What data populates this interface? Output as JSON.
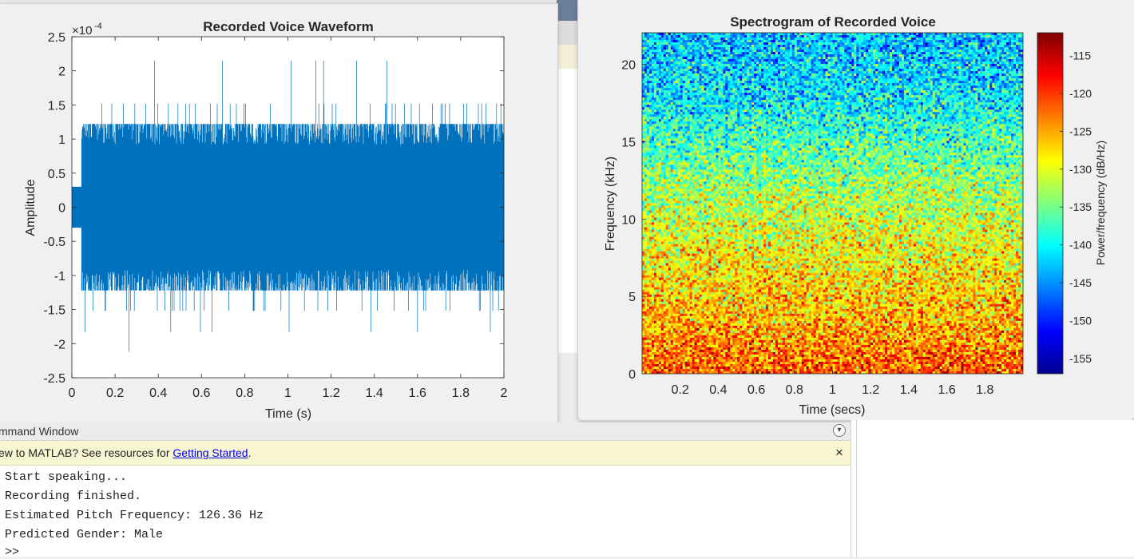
{
  "figures": [
    {
      "title": "Recorded Voice Waveform",
      "chart_data": {
        "type": "line",
        "title": "Recorded Voice Waveform",
        "xlabel": "Time (s)",
        "ylabel": "Amplitude",
        "y_exponent_label": "×10",
        "y_exponent_power": "-4",
        "xlim": [
          0,
          2
        ],
        "ylim": [
          -2.5,
          2.5
        ],
        "x_ticks": [
          "0",
          "0.2",
          "0.4",
          "0.6",
          "0.8",
          "1",
          "1.2",
          "1.4",
          "1.6",
          "1.8",
          "2"
        ],
        "x_tick_values": [
          0,
          0.2,
          0.4,
          0.6,
          0.8,
          1,
          1.2,
          1.4,
          1.6,
          1.8,
          2
        ],
        "y_ticks": [
          "2.5",
          "2",
          "1.5",
          "1",
          "0.5",
          "0",
          "-0.5",
          "-1",
          "-1.5",
          "-2",
          "-2.5"
        ],
        "y_tick_values": [
          2.5,
          2,
          1.5,
          1,
          0.5,
          0,
          -0.5,
          -1,
          -1.5,
          -2,
          -2.5
        ],
        "series": [
          {
            "color": "#0072bd",
            "segments": [
              {
                "x_start": 0,
                "x_end": 0.045,
                "upper": 0.3,
                "lower": -0.3
              },
              {
                "x_start": 0.045,
                "x_end": 2,
                "upper": 1.22,
                "lower": -1.22,
                "dense_upper": 0.92,
                "dense_lower": -0.92
              }
            ],
            "spike_levels_upper": [
              1.52,
              2.15
            ],
            "spike_levels_lower": [
              -1.52,
              -1.83,
              -2.12
            ]
          }
        ],
        "grid": false
      }
    },
    {
      "title": "Spectrogram of Recorded Voice",
      "chart_data": {
        "type": "heatmap",
        "title": "Spectrogram of Recorded Voice",
        "xlabel": "Time (secs)",
        "ylabel": "Frequency (kHz)",
        "xlim": [
          0,
          2
        ],
        "ylim": [
          0,
          22.05
        ],
        "x_ticks": [
          "0.2",
          "0.4",
          "0.6",
          "0.8",
          "1",
          "1.2",
          "1.4",
          "1.6",
          "1.8"
        ],
        "x_tick_values": [
          0.2,
          0.4,
          0.6,
          0.8,
          1,
          1.2,
          1.4,
          1.6,
          1.8
        ],
        "y_ticks": [
          "0",
          "5",
          "10",
          "15",
          "20"
        ],
        "y_tick_values": [
          0,
          5,
          10,
          15,
          20
        ],
        "colorbar": {
          "label": "Power/frequency (dB/Hz)",
          "range": [
            -157,
            -112
          ],
          "ticks": [
            "-115",
            "-120",
            "-125",
            "-130",
            "-135",
            "-140",
            "-145",
            "-150",
            "-155"
          ],
          "tick_values": [
            -115,
            -120,
            -125,
            -130,
            -135,
            -140,
            -145,
            -150,
            -155
          ],
          "colormap": "jet"
        },
        "power_profile_db": [
          {
            "freq_khz": 0,
            "db": -121
          },
          {
            "freq_khz": 3,
            "db": -125
          },
          {
            "freq_khz": 8,
            "db": -129
          },
          {
            "freq_khz": 12,
            "db": -133
          },
          {
            "freq_khz": 15,
            "db": -137
          },
          {
            "freq_khz": 18,
            "db": -141
          },
          {
            "freq_khz": 22.05,
            "db": -143
          }
        ]
      }
    }
  ],
  "command_window": {
    "title": "mmand Window",
    "banner_prefix": "ew to MATLAB? See resources for ",
    "banner_link": "Getting Started",
    "banner_suffix": ".",
    "close_icon": "×",
    "lines": [
      "Start speaking...",
      "Recording finished.",
      "Estimated Pitch Frequency: 126.36 Hz",
      "Predicted Gender: Male",
      ">>"
    ]
  }
}
